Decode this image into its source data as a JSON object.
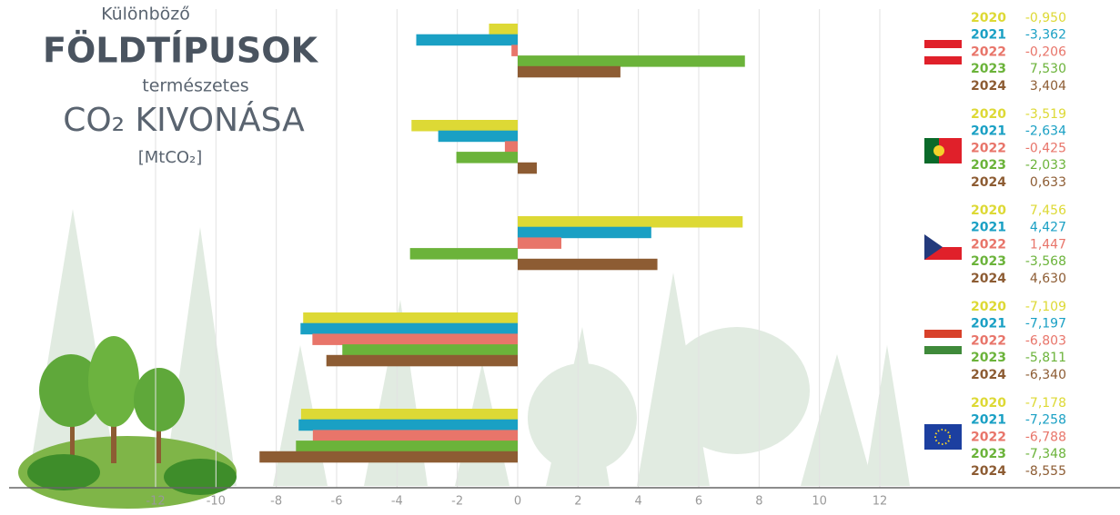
{
  "chart_data": {
    "type": "hbar",
    "title_pre": "Különböző",
    "title": "FÖLDTÍPUSOK",
    "subtitle": "természetes",
    "title_main": "CO₂ KIVONÁSA",
    "unit": "[MtCO₂]",
    "categories": [
      null,
      null,
      null,
      null,
      null
    ],
    "series": [
      {
        "name": "2020",
        "color": "#ddd935",
        "values": [
          -0.95,
          -3.519,
          7.456,
          -7.109,
          -7.178
        ],
        "value_labels": [
          "-0,950",
          "-3,519",
          "7,456",
          "-7,109",
          "-7,178"
        ]
      },
      {
        "name": "2021",
        "color": "#1aa0c4",
        "values": [
          -3.362,
          -2.634,
          4.427,
          -7.197,
          -7.258
        ],
        "value_labels": [
          "-3,362",
          "-2,634",
          "4,427",
          "-7,197",
          "-7,258"
        ]
      },
      {
        "name": "2022",
        "color": "#e8756a",
        "values": [
          -0.206,
          -0.425,
          1.447,
          -6.803,
          -6.788
        ],
        "value_labels": [
          "-0,206",
          "-0,425",
          "1,447",
          "-6,803",
          "-6,788"
        ]
      },
      {
        "name": "2023",
        "color": "#6bb33a",
        "values": [
          7.53,
          -2.033,
          -3.568,
          -5.811,
          -7.348
        ],
        "value_labels": [
          "7,530",
          "-2,033",
          "-3,568",
          "-5,811",
          "-7,348"
        ]
      },
      {
        "name": "2024",
        "color": "#8d5c33",
        "values": [
          3.404,
          0.633,
          4.63,
          -6.34,
          -8.555
        ],
        "value_labels": [
          "3,404",
          "0,633",
          "4,630",
          "-6,340",
          "-8,555"
        ]
      }
    ],
    "xlim": [
      -12,
      12
    ],
    "xticks": [
      -12,
      -10,
      -8,
      -6,
      -4,
      -2,
      0,
      2,
      4,
      6,
      8,
      10,
      12
    ],
    "grid": true
  }
}
